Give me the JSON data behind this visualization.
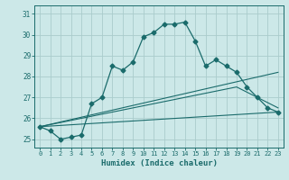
{
  "xlabel": "Humidex (Indice chaleur)",
  "background_color": "#cce8e8",
  "grid_color": "#aacccc",
  "line_color": "#1a6b6b",
  "xlim": [
    -0.5,
    23.5
  ],
  "ylim": [
    24.6,
    31.4
  ],
  "yticks": [
    25,
    26,
    27,
    28,
    29,
    30,
    31
  ],
  "xticks": [
    0,
    1,
    2,
    3,
    4,
    5,
    6,
    7,
    8,
    9,
    10,
    11,
    12,
    13,
    14,
    15,
    16,
    17,
    18,
    19,
    20,
    21,
    22,
    23
  ],
  "series1_x": [
    0,
    1,
    2,
    3,
    4,
    5,
    6,
    7,
    8,
    9,
    10,
    11,
    12,
    13,
    14,
    15,
    16,
    17,
    18,
    19,
    20,
    21,
    22,
    23
  ],
  "series1_y": [
    25.6,
    25.4,
    25.0,
    25.1,
    25.2,
    26.7,
    27.0,
    28.5,
    28.3,
    28.7,
    29.9,
    30.1,
    30.5,
    30.5,
    30.6,
    29.7,
    28.5,
    28.8,
    28.5,
    28.2,
    27.5,
    27.0,
    26.5,
    26.3
  ],
  "series2_x": [
    0,
    23
  ],
  "series2_y": [
    25.6,
    28.2
  ],
  "series3_x": [
    0,
    23
  ],
  "series3_y": [
    25.6,
    26.3
  ],
  "series4_x": [
    0,
    19,
    23
  ],
  "series4_y": [
    25.6,
    27.5,
    26.5
  ]
}
